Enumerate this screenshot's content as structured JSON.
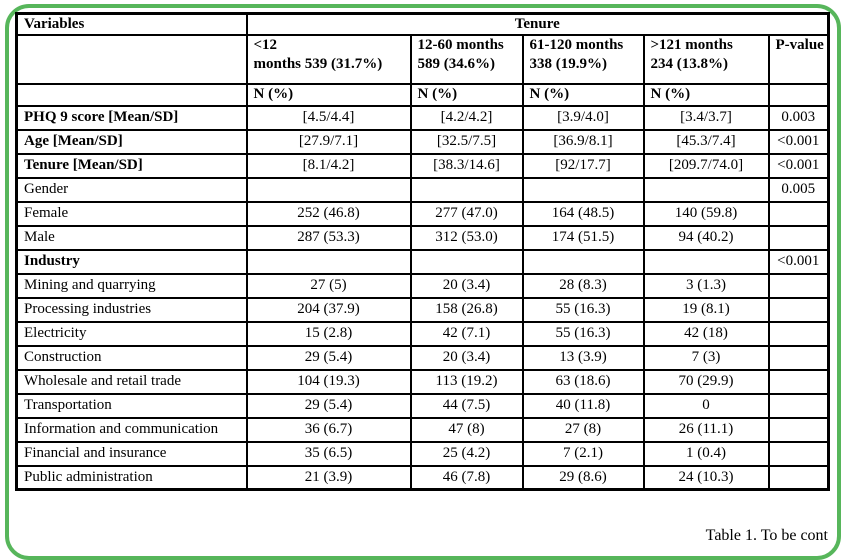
{
  "frame": {
    "border_color": "#57b65b"
  },
  "table": {
    "header": {
      "variables_label": "Variables",
      "tenure_label": "Tenure",
      "pvalue_label": "P-value",
      "n_pct_label": "N (%)",
      "columns": [
        {
          "line1": "<12",
          "line2": "months 539 (31.7%)"
        },
        {
          "line1": "12-60 months",
          "line2": "589 (34.6%)"
        },
        {
          "line1": "61-120 months",
          "line2": "338 (19.9%)"
        },
        {
          "line1": ">121 months",
          "line2": "234 (13.8%)"
        }
      ]
    },
    "rows": [
      {
        "label": "PHQ 9 score [Mean/SD]",
        "cells": [
          "[4.5/4.4]",
          "[4.2/4.2]",
          "[3.9/4.0]",
          "[3.4/3.7]"
        ],
        "p": "0.003"
      },
      {
        "label": "Age [Mean/SD]",
        "cells": [
          "[27.9/7.1]",
          "[32.5/7.5]",
          "[36.9/8.1]",
          "[45.3/7.4]"
        ],
        "p": "<0.001"
      },
      {
        "label": "Tenure [Mean/SD]",
        "cells": [
          "[8.1/4.2]",
          "[38.3/14.6]",
          "[92/17.7]",
          "[209.7/74.0]"
        ],
        "p": "<0.001"
      },
      {
        "label": "Gender",
        "cells": [
          "",
          "",
          "",
          ""
        ],
        "p": "0.005"
      },
      {
        "label": "Female",
        "cells": [
          "252 (46.8)",
          "277 (47.0)",
          "164 (48.5)",
          "140 (59.8)"
        ],
        "p": ""
      },
      {
        "label": "Male",
        "cells": [
          "287 (53.3)",
          "312 (53.0)",
          "174 (51.5)",
          "94 (40.2)"
        ],
        "p": ""
      },
      {
        "label": "Industry",
        "cells": [
          "",
          "",
          "",
          ""
        ],
        "p": "<0.001"
      },
      {
        "label": "Mining and quarrying",
        "cells": [
          "27 (5)",
          "20 (3.4)",
          "28 (8.3)",
          "3 (1.3)"
        ],
        "p": ""
      },
      {
        "label": "Processing industries",
        "cells": [
          "204 (37.9)",
          "158 (26.8)",
          "55 (16.3)",
          "19 (8.1)"
        ],
        "p": ""
      },
      {
        "label": "Electricity",
        "cells": [
          "15 (2.8)",
          "42 (7.1)",
          "55 (16.3)",
          "42 (18)"
        ],
        "p": ""
      },
      {
        "label": "Construction",
        "cells": [
          "29 (5.4)",
          "20 (3.4)",
          "13 (3.9)",
          "7 (3)"
        ],
        "p": ""
      },
      {
        "label": "Wholesale and retail trade",
        "cells": [
          "104 (19.3)",
          "113 (19.2)",
          "63 (18.6)",
          "70 (29.9)"
        ],
        "p": ""
      },
      {
        "label": "Transportation",
        "cells": [
          "29 (5.4)",
          "44 (7.5)",
          "40 (11.8)",
          "0"
        ],
        "p": ""
      },
      {
        "label": "Information and communication",
        "cells": [
          "36 (6.7)",
          "47 (8)",
          "27 (8)",
          "26 (11.1)"
        ],
        "p": ""
      },
      {
        "label": "Financial and insurance",
        "cells": [
          "35 (6.5)",
          "25 (4.2)",
          "7 (2.1)",
          "1 (0.4)"
        ],
        "p": ""
      },
      {
        "label": "Public administration",
        "cells": [
          "21 (3.9)",
          "46 (7.8)",
          "29 (8.6)",
          "24 (10.3)"
        ],
        "p": ""
      }
    ]
  },
  "footer": {
    "caption": "Table 1. To be cont"
  }
}
